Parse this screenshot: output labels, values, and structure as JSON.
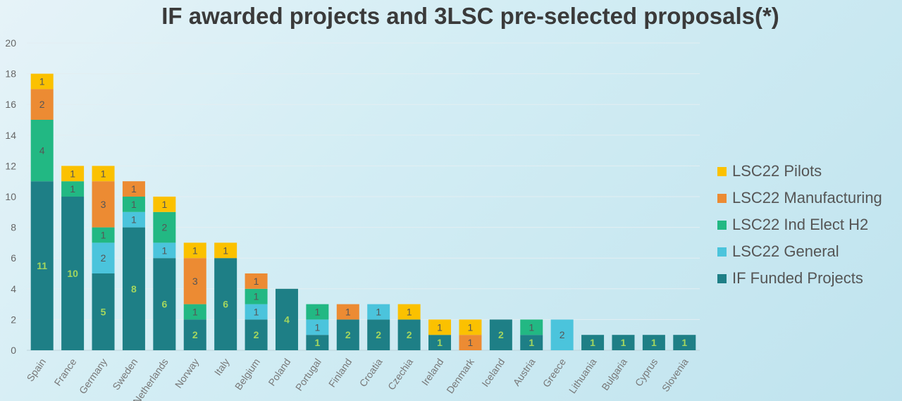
{
  "chart_data": {
    "type": "bar",
    "stacked": true,
    "title": "IF awarded projects and 3LSC pre-selected proposals(*)",
    "xlabel": "",
    "ylabel": "",
    "ylim": [
      0,
      20
    ],
    "yticks": [
      0,
      2,
      4,
      6,
      8,
      10,
      12,
      14,
      16,
      18,
      20
    ],
    "grid": true,
    "legend_position": "right",
    "categories": [
      "Spain",
      "France",
      "Germany",
      "Sweden",
      "Netherlands",
      "Norway",
      "Italy",
      "Belgium",
      "Poland",
      "Portugal",
      "Finland",
      "Croatia",
      "Czechia",
      "Ireland",
      "Denmark",
      "Iceland",
      "Austria",
      "Greece",
      "Lithuania",
      "Bulgaria",
      "Cyprus",
      "Slovenia"
    ],
    "series": [
      {
        "name": "IF Funded Projects",
        "color": "#1e7f86",
        "label_color": "#a4d65e",
        "values": [
          11,
          10,
          5,
          8,
          6,
          2,
          6,
          2,
          4,
          1,
          2,
          2,
          2,
          1,
          0,
          2,
          1,
          0,
          1,
          1,
          1,
          1
        ]
      },
      {
        "name": "LSC22 General",
        "color": "#4bc4dc",
        "label_color": "#555555",
        "values": [
          0,
          0,
          2,
          1,
          1,
          0,
          0,
          1,
          0,
          1,
          0,
          1,
          0,
          0,
          0,
          0,
          0,
          2,
          0,
          0,
          0,
          0
        ]
      },
      {
        "name": "LSC22 Ind Elect H2",
        "color": "#22b883",
        "label_color": "#555555",
        "values": [
          4,
          1,
          1,
          1,
          2,
          1,
          0,
          1,
          0,
          1,
          0,
          0,
          0,
          0,
          0,
          0,
          1,
          0,
          0,
          0,
          0,
          0
        ]
      },
      {
        "name": "LSC22 Manufacturing",
        "color": "#ec8b33",
        "label_color": "#555555",
        "values": [
          2,
          0,
          3,
          1,
          0,
          3,
          0,
          1,
          0,
          0,
          1,
          0,
          0,
          0,
          1,
          0,
          0,
          0,
          0,
          0,
          0,
          0
        ]
      },
      {
        "name": "LSC22 Pilots",
        "color": "#fbc100",
        "label_color": "#555555",
        "values": [
          1,
          1,
          1,
          0,
          1,
          1,
          1,
          0,
          0,
          0,
          0,
          0,
          1,
          1,
          1,
          0,
          0,
          0,
          0,
          0,
          0,
          0
        ]
      }
    ],
    "legend_order": [
      "LSC22 Pilots",
      "LSC22 Manufacturing",
      "LSC22 Ind Elect H2",
      "LSC22 General",
      "IF Funded Projects"
    ]
  }
}
